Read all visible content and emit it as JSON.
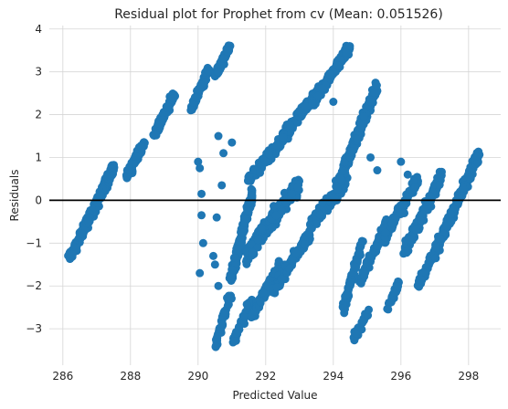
{
  "chart_data": {
    "type": "scatter",
    "title": "Residual plot for Prophet from cv (Mean: 0.051526)",
    "xlabel": "Predicted Value",
    "ylabel": "Residuals",
    "xlim": [
      285.6,
      298.95
    ],
    "ylim": [
      -3.85,
      4.08
    ],
    "xticks": [
      286,
      288,
      290,
      292,
      294,
      296,
      298
    ],
    "yticks": [
      -3,
      -2,
      -1,
      0,
      1,
      2,
      3,
      4
    ],
    "xtick_labels": [
      "286",
      "288",
      "290",
      "292",
      "294",
      "296",
      "298"
    ],
    "ytick_labels": [
      "−3",
      "−2",
      "−1",
      "0",
      "1",
      "2",
      "3",
      "4"
    ],
    "grid": true,
    "reference_line": {
      "y": 0,
      "color": "#000000"
    },
    "marker_color": "#1f77b4",
    "clusters": [
      {
        "x0": 286.2,
        "y0": -1.35,
        "x1": 287.5,
        "y1": 0.75,
        "n": 320,
        "spread": 0.12
      },
      {
        "x0": 287.9,
        "y0": 0.55,
        "x1": 288.4,
        "y1": 1.35,
        "n": 110,
        "spread": 0.1
      },
      {
        "x0": 288.7,
        "y0": 1.5,
        "x1": 289.3,
        "y1": 2.5,
        "n": 90,
        "spread": 0.1
      },
      {
        "x0": 289.8,
        "y0": 2.1,
        "x1": 290.3,
        "y1": 3.05,
        "n": 90,
        "spread": 0.1
      },
      {
        "x0": 290.5,
        "y0": 2.9,
        "x1": 290.95,
        "y1": 3.6,
        "n": 70,
        "spread": 0.08
      },
      {
        "x0": 290.5,
        "y0": -3.45,
        "x1": 290.95,
        "y1": -2.2,
        "n": 55,
        "spread": 0.1
      },
      {
        "x0": 290.95,
        "y0": -1.9,
        "x1": 291.6,
        "y1": 0.2,
        "n": 160,
        "spread": 0.15
      },
      {
        "x0": 291.05,
        "y0": -3.3,
        "x1": 291.6,
        "y1": -2.3,
        "n": 50,
        "spread": 0.1
      },
      {
        "x0": 291.4,
        "y0": -1.3,
        "x1": 293.0,
        "y1": 0.4,
        "n": 260,
        "spread": 0.2
      },
      {
        "x0": 291.5,
        "y0": 0.5,
        "x1": 292.7,
        "y1": 1.6,
        "n": 170,
        "spread": 0.12
      },
      {
        "x0": 292.5,
        "y0": 1.5,
        "x1": 293.6,
        "y1": 2.6,
        "n": 160,
        "spread": 0.12
      },
      {
        "x0": 291.6,
        "y0": -2.7,
        "x1": 292.4,
        "y1": -1.5,
        "n": 80,
        "spread": 0.1
      },
      {
        "x0": 292.2,
        "y0": -2.1,
        "x1": 293.3,
        "y1": -0.8,
        "n": 110,
        "spread": 0.15
      },
      {
        "x0": 293.4,
        "y0": 2.3,
        "x1": 294.5,
        "y1": 3.6,
        "n": 170,
        "spread": 0.1
      },
      {
        "x0": 293.3,
        "y0": -0.6,
        "x1": 294.4,
        "y1": 0.5,
        "n": 130,
        "spread": 0.15
      },
      {
        "x0": 294.1,
        "y0": 0.3,
        "x1": 295.3,
        "y1": 2.7,
        "n": 240,
        "spread": 0.15
      },
      {
        "x0": 294.3,
        "y0": -2.5,
        "x1": 294.85,
        "y1": -1.0,
        "n": 80,
        "spread": 0.12
      },
      {
        "x0": 294.6,
        "y0": -3.2,
        "x1": 295.05,
        "y1": -2.6,
        "n": 30,
        "spread": 0.08
      },
      {
        "x0": 294.8,
        "y0": -1.9,
        "x1": 295.6,
        "y1": -0.5,
        "n": 90,
        "spread": 0.12
      },
      {
        "x0": 295.6,
        "y0": -2.6,
        "x1": 295.95,
        "y1": -1.9,
        "n": 40,
        "spread": 0.08
      },
      {
        "x0": 295.5,
        "y0": -0.9,
        "x1": 296.5,
        "y1": 0.5,
        "n": 110,
        "spread": 0.12
      },
      {
        "x0": 296.1,
        "y0": -1.2,
        "x1": 297.2,
        "y1": 0.6,
        "n": 140,
        "spread": 0.15
      },
      {
        "x0": 296.5,
        "y0": -2.0,
        "x1": 297.3,
        "y1": -0.7,
        "n": 70,
        "spread": 0.12
      },
      {
        "x0": 297.0,
        "y0": -1.2,
        "x1": 298.3,
        "y1": 1.1,
        "n": 200,
        "spread": 0.15
      }
    ],
    "scattered_points": [
      [
        290.0,
        0.9
      ],
      [
        290.05,
        0.75
      ],
      [
        290.1,
        0.15
      ],
      [
        290.1,
        -0.35
      ],
      [
        290.15,
        -1.0
      ],
      [
        290.05,
        -1.7
      ],
      [
        290.6,
        1.5
      ],
      [
        290.75,
        1.1
      ],
      [
        290.7,
        0.35
      ],
      [
        290.55,
        -0.4
      ],
      [
        290.5,
        -1.5
      ],
      [
        290.6,
        -2.0
      ],
      [
        290.45,
        -1.3
      ],
      [
        291.0,
        1.35
      ],
      [
        294.0,
        2.3
      ],
      [
        295.1,
        1.0
      ],
      [
        295.3,
        0.7
      ],
      [
        296.0,
        0.9
      ],
      [
        296.2,
        0.6
      ],
      [
        296.1,
        -0.3
      ]
    ]
  }
}
